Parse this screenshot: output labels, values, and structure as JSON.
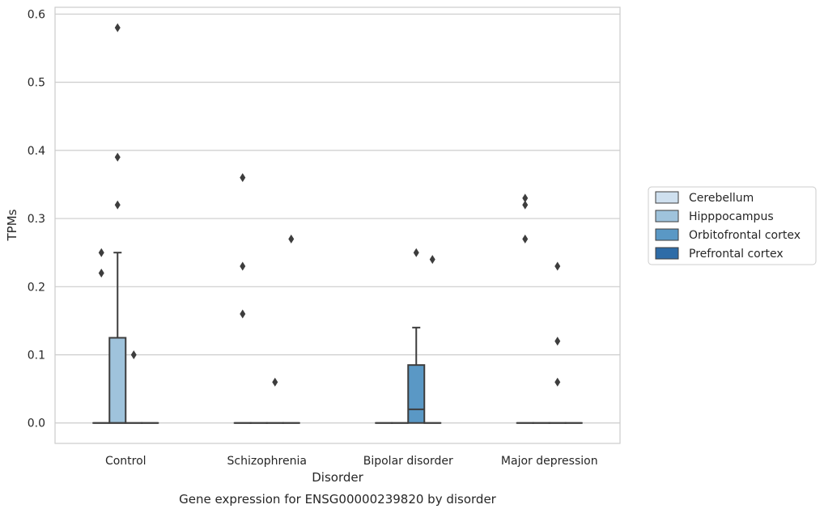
{
  "chart_data": {
    "type": "box",
    "xlabel": "Disorder",
    "ylabel": "TPMs",
    "caption": "Gene expression for ENSG00000239820 by disorder",
    "ylim": [
      -0.03,
      0.61
    ],
    "yticks": [
      0.0,
      0.1,
      0.2,
      0.3,
      0.4,
      0.5,
      0.6
    ],
    "ytick_labels": [
      "0.0",
      "0.1",
      "0.2",
      "0.3",
      "0.4",
      "0.5",
      "0.6"
    ],
    "grid": "horizontal",
    "legend_position": "right",
    "categories": [
      "Control",
      "Schizophrenia",
      "Bipolar disorder",
      "Major depression"
    ],
    "series": [
      {
        "name": "Cerebellum",
        "color": "#cfe0ef",
        "boxes": [
          {
            "q1": 0.0,
            "median": 0.0,
            "q3": 0.0,
            "whisker_low": 0.0,
            "whisker_high": 0.0,
            "outliers": [
              0.22,
              0.25
            ]
          },
          {
            "q1": 0.0,
            "median": 0.0,
            "q3": 0.0,
            "whisker_low": 0.0,
            "whisker_high": 0.0,
            "outliers": [
              0.16,
              0.23,
              0.36
            ]
          },
          {
            "q1": 0.0,
            "median": 0.0,
            "q3": 0.0,
            "whisker_low": 0.0,
            "whisker_high": 0.0,
            "outliers": []
          },
          {
            "q1": 0.0,
            "median": 0.0,
            "q3": 0.0,
            "whisker_low": 0.0,
            "whisker_high": 0.0,
            "outliers": [
              0.27,
              0.32,
              0.33
            ]
          }
        ]
      },
      {
        "name": "Hipppocampus",
        "color": "#9fc3dc",
        "boxes": [
          {
            "q1": 0.0,
            "median": 0.0,
            "q3": 0.125,
            "whisker_low": 0.0,
            "whisker_high": 0.25,
            "outliers": [
              0.32,
              0.39,
              0.58
            ]
          },
          {
            "q1": 0.0,
            "median": 0.0,
            "q3": 0.0,
            "whisker_low": 0.0,
            "whisker_high": 0.0,
            "outliers": []
          },
          {
            "q1": 0.0,
            "median": 0.0,
            "q3": 0.0,
            "whisker_low": 0.0,
            "whisker_high": 0.0,
            "outliers": []
          },
          {
            "q1": 0.0,
            "median": 0.0,
            "q3": 0.0,
            "whisker_low": 0.0,
            "whisker_high": 0.0,
            "outliers": []
          }
        ]
      },
      {
        "name": "Orbitofrontal cortex",
        "color": "#5a98c5",
        "boxes": [
          {
            "q1": 0.0,
            "median": 0.0,
            "q3": 0.0,
            "whisker_low": 0.0,
            "whisker_high": 0.0,
            "outliers": [
              0.1
            ]
          },
          {
            "q1": 0.0,
            "median": 0.0,
            "q3": 0.0,
            "whisker_low": 0.0,
            "whisker_high": 0.0,
            "outliers": [
              0.06
            ]
          },
          {
            "q1": 0.0,
            "median": 0.02,
            "q3": 0.085,
            "whisker_low": 0.0,
            "whisker_high": 0.14,
            "outliers": [
              0.25
            ]
          },
          {
            "q1": 0.0,
            "median": 0.0,
            "q3": 0.0,
            "whisker_low": 0.0,
            "whisker_high": 0.0,
            "outliers": [
              0.06,
              0.12,
              0.23
            ]
          }
        ]
      },
      {
        "name": "Prefrontal cortex",
        "color": "#2e6ca7",
        "boxes": [
          {
            "q1": 0.0,
            "median": 0.0,
            "q3": 0.0,
            "whisker_low": 0.0,
            "whisker_high": 0.0,
            "outliers": []
          },
          {
            "q1": 0.0,
            "median": 0.0,
            "q3": 0.0,
            "whisker_low": 0.0,
            "whisker_high": 0.0,
            "outliers": [
              0.27
            ]
          },
          {
            "q1": 0.0,
            "median": 0.0,
            "q3": 0.0,
            "whisker_low": 0.0,
            "whisker_high": 0.0,
            "outliers": [
              0.24
            ]
          },
          {
            "q1": 0.0,
            "median": 0.0,
            "q3": 0.0,
            "whisker_low": 0.0,
            "whisker_high": 0.0,
            "outliers": []
          }
        ]
      }
    ]
  }
}
